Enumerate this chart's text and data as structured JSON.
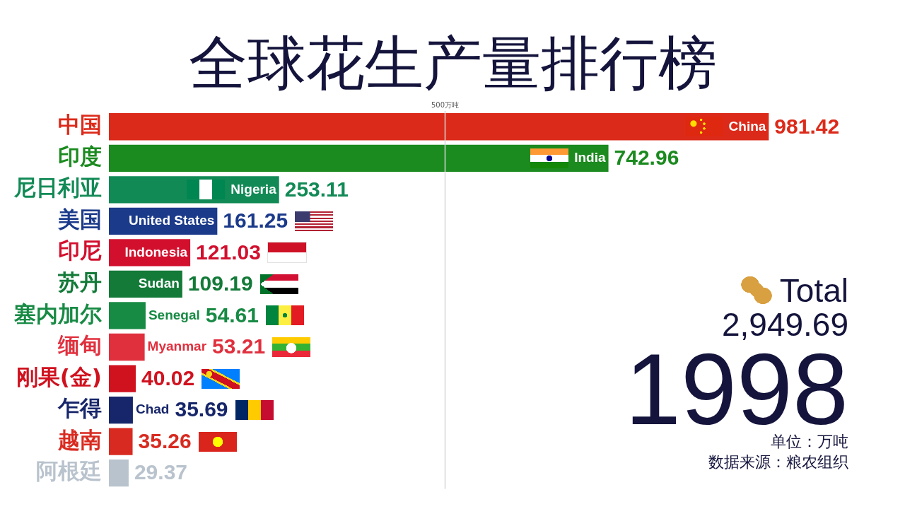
{
  "chart_data": {
    "type": "bar",
    "orientation": "horizontal",
    "title": "全球花生产量排行榜",
    "categories": [
      "中国",
      "印度",
      "尼日利亚",
      "美国",
      "印尼",
      "苏丹",
      "塞内加尔",
      "缅甸",
      "刚果(金)",
      "乍得",
      "越南",
      "阿根廷"
    ],
    "values": [
      981.42,
      742.96,
      253.11,
      161.25,
      121.03,
      109.19,
      54.61,
      53.21,
      40.02,
      35.69,
      35.26,
      29.37
    ],
    "colors": [
      "#dc2a1a",
      "#1b8a1f",
      "#128a56",
      "#1b3a8a",
      "#d2102e",
      "#137a38",
      "#178a44",
      "#e0303e",
      "#d0121f",
      "#17266a",
      "#d82a20",
      "#b9c3cd"
    ],
    "data_labels": true,
    "tick_labels": "y",
    "ref_lines": [
      {
        "axis": "x",
        "value": 500,
        "label": "500万吨",
        "color": "#d6d6d6"
      }
    ],
    "annotations": [
      {
        "text": "China",
        "x": 981.42,
        "y": "中国"
      },
      {
        "text": "India",
        "x": 742.96,
        "y": "印度"
      },
      {
        "text": "Nigeria",
        "x": 253.11,
        "y": "尼日利亚"
      },
      {
        "text": "United States",
        "x": 161.25,
        "y": "美国"
      },
      {
        "text": "Indonesia",
        "x": 121.03,
        "y": "印尼"
      },
      {
        "text": "Sudan",
        "x": 109.19,
        "y": "苏丹"
      },
      {
        "text": "Senegal",
        "x": 54.61,
        "y": "塞内加尔"
      },
      {
        "text": "Myanmar",
        "x": 53.21,
        "y": "缅甸"
      },
      {
        "text": "Chad",
        "x": 35.69,
        "y": "乍得"
      },
      "Total",
      "2,949.69",
      "1998",
      "单位：万吨",
      "数据来源：粮农组织"
    ]
  }
}
